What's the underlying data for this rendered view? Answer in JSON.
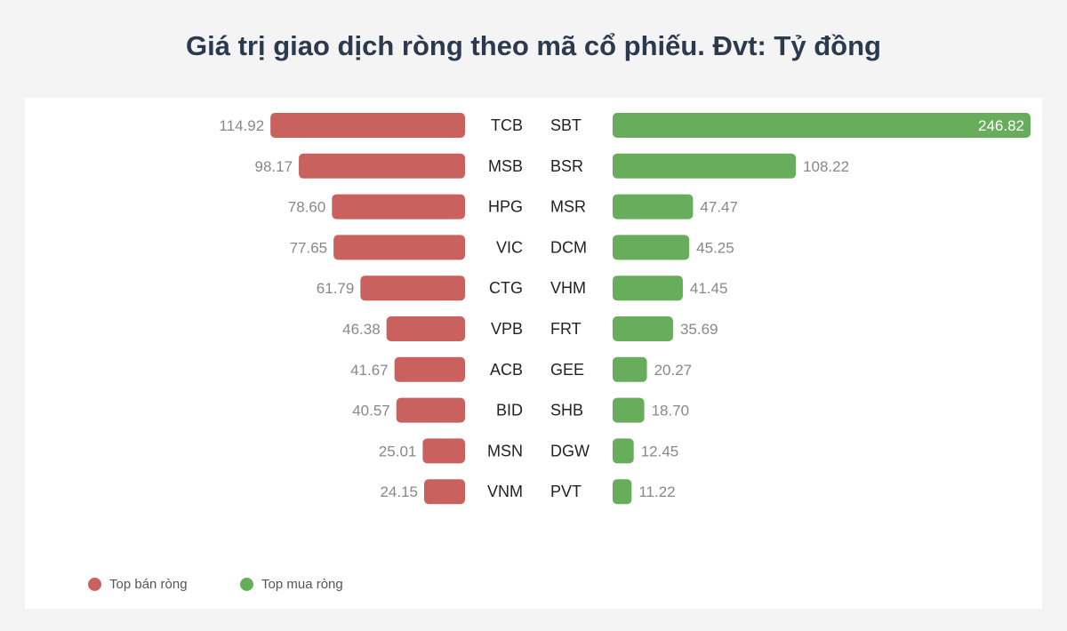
{
  "title": "Giá trị giao dịch ròng theo mã cổ phiếu. Đvt: Tỷ đồng",
  "colors": {
    "sell": "#c9615e",
    "buy": "#67ad5b",
    "label": "#222222",
    "value": "#888888",
    "value_inside": "#ffffff"
  },
  "legend": {
    "sell_label": "Top bán ròng",
    "buy_label": "Top mua ròng"
  },
  "chart_data": {
    "type": "bar",
    "orientation": "horizontal",
    "title": "Giá trị giao dịch ròng theo mã cổ phiếu. Đvt: Tỷ đồng",
    "legend_position": "bottom-left",
    "grid": false,
    "series": [
      {
        "name": "Top bán ròng",
        "categories": [
          "TCB",
          "MSB",
          "HPG",
          "VIC",
          "CTG",
          "VPB",
          "ACB",
          "BID",
          "MSN",
          "VNM"
        ],
        "values": [
          114.92,
          98.17,
          78.6,
          77.65,
          61.79,
          46.38,
          41.67,
          40.57,
          25.01,
          24.15
        ],
        "labels": [
          "114.92",
          "98.17",
          "78.60",
          "77.65",
          "61.79",
          "46.38",
          "41.67",
          "40.57",
          "25.01",
          "24.15"
        ]
      },
      {
        "name": "Top mua ròng",
        "categories": [
          "SBT",
          "BSR",
          "MSR",
          "DCM",
          "VHM",
          "FRT",
          "GEE",
          "SHB",
          "DGW",
          "PVT"
        ],
        "values": [
          246.82,
          108.22,
          47.47,
          45.25,
          41.45,
          35.69,
          20.27,
          18.7,
          12.45,
          11.22
        ],
        "labels": [
          "246.82",
          "108.22",
          "47.47",
          "45.25",
          "41.45",
          "35.69",
          "20.27",
          "18.70",
          "12.45",
          "11.22"
        ]
      }
    ]
  }
}
